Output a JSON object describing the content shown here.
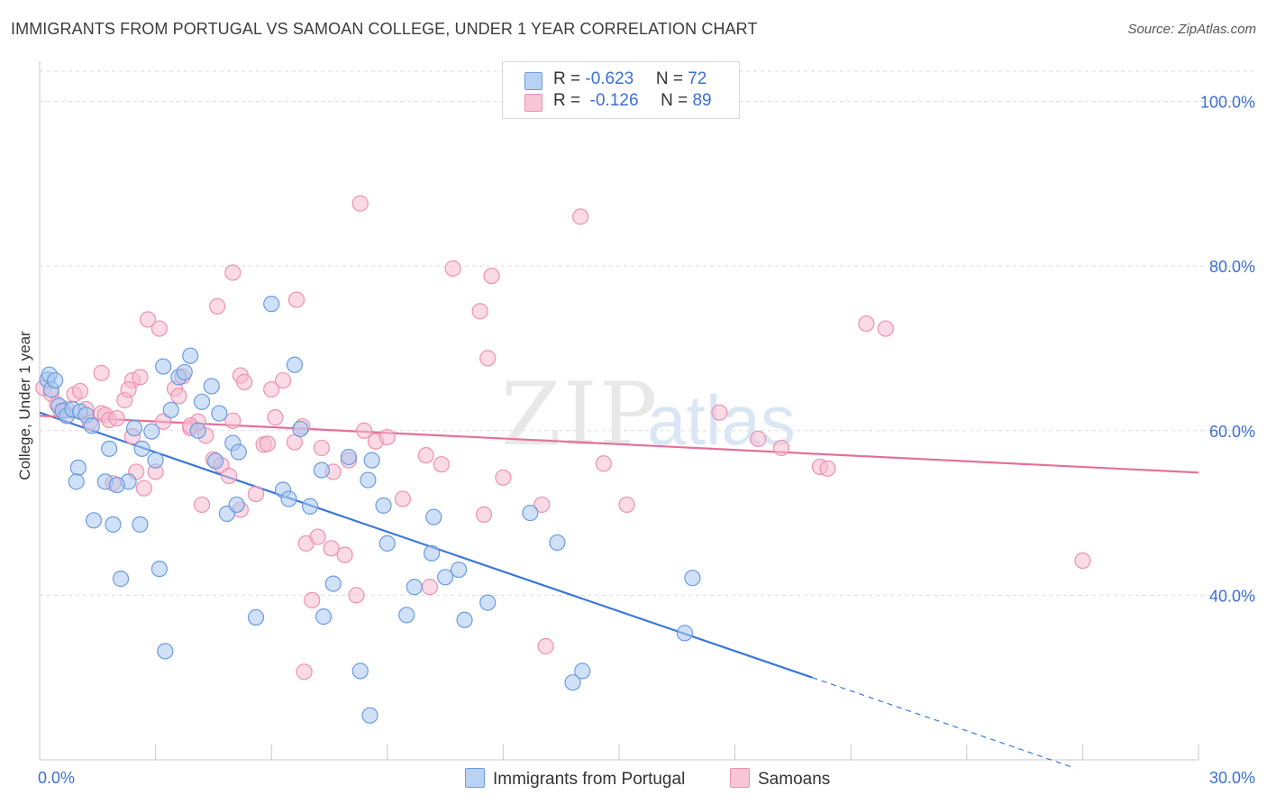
{
  "header": {
    "title": "IMMIGRANTS FROM PORTUGAL VS SAMOAN COLLEGE, UNDER 1 YEAR CORRELATION CHART",
    "source": "Source: ZipAtlas.com"
  },
  "watermark": {
    "zip": "ZIP",
    "atlas": "atlas"
  },
  "legend_top": {
    "rows": [
      {
        "r_label": "R = ",
        "r_value": "-0.623",
        "n_label": "N = ",
        "n_value": "72"
      },
      {
        "r_label": "R = ",
        "r_value": " -0.126",
        "n_label": "N = ",
        "n_value": "89"
      }
    ]
  },
  "legend_bottom": {
    "items": [
      {
        "label": "Immigrants from Portugal"
      },
      {
        "label": "Samoans"
      }
    ]
  },
  "chart_data": {
    "type": "scatter",
    "title": "IMMIGRANTS FROM PORTUGAL VS SAMOAN COLLEGE, UNDER 1 YEAR CORRELATION CHART",
    "xlabel": "",
    "ylabel": "College, Under 1 year",
    "xlim": [
      0,
      30
    ],
    "ylim": [
      20,
      104
    ],
    "x_tick_labels": [
      {
        "value": 0,
        "label": "0.0%"
      },
      {
        "value": 30,
        "label": "30.0%"
      }
    ],
    "y_tick_labels": [
      {
        "value": 100,
        "label": "100.0%"
      },
      {
        "value": 80,
        "label": "80.0%"
      },
      {
        "value": 60,
        "label": "60.0%"
      },
      {
        "value": 40,
        "label": "40.0%"
      }
    ],
    "grid": true,
    "legend_position": "top-center",
    "colors": {
      "portugal_fill": "#aac8f0",
      "portugal_stroke": "#6a9be0",
      "portugal_line": "#3a78d6",
      "samoan_fill": "#f6bcd0",
      "samoan_stroke": "#ec92b0",
      "samoan_line": "#e4709a",
      "axis_label": "#3b6fd4"
    },
    "series": [
      {
        "name": "Immigrants from Portugal",
        "R": -0.623,
        "N": 72,
        "trend": {
          "x0": 0,
          "y0": 62.2,
          "x1": 20.0,
          "y1": 30.0,
          "dash_x_end": 26.8,
          "dash_y_end": 19.0
        },
        "points": [
          [
            0.2,
            66.2
          ],
          [
            0.25,
            66.8
          ],
          [
            0.3,
            65.0
          ],
          [
            0.4,
            66.1
          ],
          [
            0.5,
            63.0
          ],
          [
            0.6,
            62.4
          ],
          [
            0.7,
            61.8
          ],
          [
            0.85,
            62.6
          ],
          [
            1.05,
            62.3
          ],
          [
            1.2,
            61.9
          ],
          [
            1.35,
            60.6
          ],
          [
            1.0,
            55.5
          ],
          [
            0.95,
            53.8
          ],
          [
            1.7,
            53.8
          ],
          [
            2.3,
            53.8
          ],
          [
            2.65,
            57.8
          ],
          [
            3.0,
            56.4
          ],
          [
            3.4,
            62.5
          ],
          [
            2.45,
            60.3
          ],
          [
            2.9,
            59.9
          ],
          [
            3.2,
            67.8
          ],
          [
            3.6,
            66.5
          ],
          [
            3.75,
            67.1
          ],
          [
            3.9,
            69.1
          ],
          [
            4.2,
            63.5
          ],
          [
            4.45,
            65.4
          ],
          [
            4.65,
            62.1
          ],
          [
            5.0,
            58.5
          ],
          [
            5.15,
            57.4
          ],
          [
            4.85,
            49.9
          ],
          [
            5.1,
            51.0
          ],
          [
            4.55,
            56.3
          ],
          [
            4.1,
            60.0
          ],
          [
            6.0,
            75.4
          ],
          [
            6.6,
            68.0
          ],
          [
            6.75,
            60.2
          ],
          [
            6.3,
            52.8
          ],
          [
            6.45,
            51.7
          ],
          [
            7.0,
            50.8
          ],
          [
            7.3,
            55.2
          ],
          [
            8.0,
            56.8
          ],
          [
            8.5,
            54.0
          ],
          [
            8.6,
            56.4
          ],
          [
            8.9,
            50.9
          ],
          [
            9.0,
            46.3
          ],
          [
            9.5,
            37.6
          ],
          [
            10.2,
            49.5
          ],
          [
            10.15,
            45.1
          ],
          [
            10.5,
            42.2
          ],
          [
            10.85,
            43.1
          ],
          [
            11.0,
            37.0
          ],
          [
            11.6,
            39.1
          ],
          [
            12.7,
            50.0
          ],
          [
            13.4,
            46.4
          ],
          [
            13.8,
            29.4
          ],
          [
            14.05,
            30.8
          ],
          [
            16.7,
            35.4
          ],
          [
            16.9,
            42.1
          ],
          [
            9.7,
            41.0
          ],
          [
            2.6,
            48.6
          ],
          [
            1.9,
            48.6
          ],
          [
            2.1,
            42.0
          ],
          [
            3.1,
            43.2
          ],
          [
            3.25,
            33.2
          ],
          [
            5.6,
            37.3
          ],
          [
            7.35,
            37.4
          ],
          [
            7.6,
            41.4
          ],
          [
            8.3,
            30.8
          ],
          [
            8.55,
            25.4
          ],
          [
            1.4,
            49.1
          ],
          [
            2.0,
            53.4
          ],
          [
            1.8,
            57.8
          ]
        ]
      },
      {
        "name": "Samoans",
        "R": -0.126,
        "N": 89,
        "trend": {
          "x0": 0,
          "y0": 61.8,
          "x1": 30.0,
          "y1": 54.9
        },
        "points": [
          [
            0.1,
            65.2
          ],
          [
            0.3,
            64.5
          ],
          [
            0.45,
            63.2
          ],
          [
            0.55,
            62.4
          ],
          [
            0.7,
            62.6
          ],
          [
            0.9,
            64.4
          ],
          [
            1.05,
            64.8
          ],
          [
            1.2,
            62.6
          ],
          [
            1.3,
            61.0
          ],
          [
            1.6,
            62.1
          ],
          [
            1.7,
            61.9
          ],
          [
            1.8,
            61.3
          ],
          [
            2.0,
            61.5
          ],
          [
            1.6,
            67.0
          ],
          [
            2.2,
            63.7
          ],
          [
            2.4,
            66.1
          ],
          [
            2.6,
            66.5
          ],
          [
            2.3,
            65.0
          ],
          [
            3.2,
            61.1
          ],
          [
            3.5,
            65.1
          ],
          [
            3.6,
            64.2
          ],
          [
            3.7,
            66.6
          ],
          [
            3.9,
            60.3
          ],
          [
            4.1,
            61.1
          ],
          [
            4.3,
            59.4
          ],
          [
            4.5,
            56.5
          ],
          [
            4.7,
            55.8
          ],
          [
            4.9,
            54.5
          ],
          [
            5.0,
            61.2
          ],
          [
            5.2,
            66.7
          ],
          [
            5.3,
            65.9
          ],
          [
            5.8,
            58.3
          ],
          [
            6.0,
            65.0
          ],
          [
            6.1,
            61.6
          ],
          [
            6.3,
            66.1
          ],
          [
            6.6,
            58.6
          ],
          [
            6.8,
            60.5
          ],
          [
            7.3,
            57.9
          ],
          [
            7.6,
            55.0
          ],
          [
            8.0,
            56.4
          ],
          [
            8.4,
            60.0
          ],
          [
            8.7,
            58.7
          ],
          [
            9.0,
            59.2
          ],
          [
            9.4,
            51.7
          ],
          [
            10.0,
            57.0
          ],
          [
            10.4,
            55.9
          ],
          [
            11.5,
            49.8
          ],
          [
            12.0,
            54.3
          ],
          [
            13.0,
            51.0
          ],
          [
            2.4,
            59.3
          ],
          [
            2.5,
            55.0
          ],
          [
            2.7,
            53.0
          ],
          [
            3.0,
            55.0
          ],
          [
            2.8,
            73.5
          ],
          [
            3.1,
            72.4
          ],
          [
            4.6,
            75.1
          ],
          [
            5.0,
            79.2
          ],
          [
            6.65,
            75.9
          ],
          [
            8.3,
            87.6
          ],
          [
            10.7,
            79.7
          ],
          [
            11.4,
            74.5
          ],
          [
            11.6,
            68.8
          ],
          [
            11.7,
            78.8
          ],
          [
            14.0,
            86.0
          ],
          [
            14.6,
            56.0
          ],
          [
            15.2,
            51.0
          ],
          [
            17.6,
            62.2
          ],
          [
            18.6,
            59.0
          ],
          [
            19.2,
            57.9
          ],
          [
            20.2,
            55.6
          ],
          [
            20.4,
            55.4
          ],
          [
            21.4,
            73.0
          ],
          [
            21.9,
            72.4
          ],
          [
            27.0,
            44.2
          ],
          [
            3.9,
            60.6
          ],
          [
            4.2,
            51.0
          ],
          [
            5.2,
            50.4
          ],
          [
            5.6,
            52.3
          ],
          [
            6.9,
            46.3
          ],
          [
            7.2,
            47.1
          ],
          [
            7.55,
            45.7
          ],
          [
            7.9,
            44.9
          ],
          [
            8.2,
            40.0
          ],
          [
            10.1,
            41.0
          ],
          [
            6.85,
            30.7
          ],
          [
            7.05,
            39.4
          ],
          [
            13.1,
            33.8
          ],
          [
            1.9,
            53.6
          ],
          [
            5.9,
            58.4
          ]
        ]
      }
    ]
  }
}
